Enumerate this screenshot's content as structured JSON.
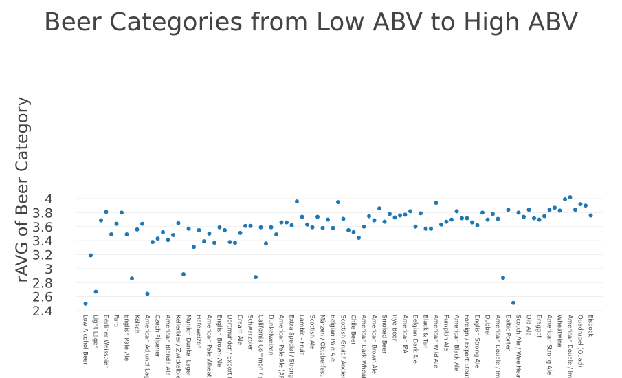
{
  "chart_data": {
    "type": "scatter",
    "title": "Beer Categories from Low ABV to High ABV",
    "xlabel": "",
    "ylabel": "rAVG of Beer Category",
    "ylim": [
      2.4,
      4.1
    ],
    "yticks": [
      2.4,
      2.6,
      2.8,
      3,
      3.2,
      3.4,
      3.6,
      3.8,
      4
    ],
    "ytick_labels": [
      "2.4",
      "2.6",
      "2.8",
      "3",
      "3.2",
      "3.4",
      "3.6",
      "3.8",
      "4"
    ],
    "grid": true,
    "marker_color": "#1f77b4",
    "categories": [
      "Low Alcohol Beer",
      "",
      "Light Lager",
      "",
      "Berliner Weissbier",
      "",
      "Faro",
      "",
      "English Pale Ale",
      "",
      "Kölsch",
      "",
      "American Adjunct Lage",
      "",
      "Czech Pilsener",
      "",
      "American Blonde Ale",
      "",
      "Kellerbier / Zwickelbier",
      "",
      "Munich Dunkel Lager",
      "",
      "Hefeweizen",
      "",
      "American Pale Wheat A",
      "",
      "English Brown Ale",
      "",
      "Dortmunder / Export L",
      "",
      "Cream Ale",
      "",
      "Schwarzbier",
      "",
      "California Common / S",
      "",
      "Dunkelweizen",
      "",
      "American Pale Ale (APA",
      "",
      "Extra Special / Strong B",
      "",
      "Lambic - Fruit",
      "",
      "Scottish Ale",
      "",
      "Märzen / Oktoberfest",
      "",
      "Belgian Pale Ale",
      "",
      "Scottish Gruit / Ancien",
      "",
      "Chile Beer",
      "",
      "American Dark Wheat",
      "",
      "American Brown Ale",
      "",
      "Smoked Beer",
      "",
      "Rye Beer",
      "",
      "American IPA",
      "",
      "Belgian Dark Ale",
      "",
      "Black & Tan",
      "",
      "American Wild Ale",
      "",
      "Pumpkin Ale",
      "",
      "American Black Ale",
      "",
      "Foreign / Export Stout",
      "",
      "English Strong Ale",
      "",
      "Dubbel",
      "",
      "American Double / Imp",
      "",
      "Baltic Porter",
      "",
      "Scotch Ale / Wee Heav",
      "",
      "Old Ale",
      "",
      "Braggot",
      "",
      "American Strong Ale",
      "",
      "Wheatwine",
      "",
      "American Double / Imp",
      "",
      "Quadrupel (Quad)",
      "",
      "Eisbock"
    ],
    "values": [
      2.5,
      3.19,
      2.67,
      3.69,
      3.81,
      3.49,
      3.64,
      3.8,
      3.49,
      2.86,
      3.56,
      3.64,
      2.64,
      3.38,
      3.43,
      3.52,
      3.41,
      3.48,
      3.65,
      2.92,
      3.57,
      3.31,
      3.55,
      3.39,
      3.5,
      3.37,
      3.59,
      3.55,
      3.38,
      3.37,
      3.51,
      3.61,
      3.61,
      2.88,
      3.59,
      3.36,
      3.59,
      3.49,
      3.66,
      3.66,
      3.62,
      3.96,
      3.74,
      3.63,
      3.59,
      3.74,
      3.58,
      3.7,
      3.58,
      3.95,
      3.71,
      3.55,
      3.52,
      3.44,
      3.6,
      3.75,
      3.69,
      3.86,
      3.67,
      3.78,
      3.73,
      3.76,
      3.77,
      3.82,
      3.6,
      3.79,
      3.57,
      3.57,
      3.94,
      3.63,
      3.67,
      3.7,
      3.82,
      3.72,
      3.72,
      3.66,
      3.62,
      3.8,
      3.7,
      3.78,
      3.71,
      2.87,
      3.84,
      2.51,
      3.8,
      3.74,
      3.84,
      3.72,
      3.7,
      3.75,
      3.84,
      3.87,
      3.83,
      3.99,
      4.02,
      3.84,
      3.92,
      3.9,
      3.76
    ]
  }
}
